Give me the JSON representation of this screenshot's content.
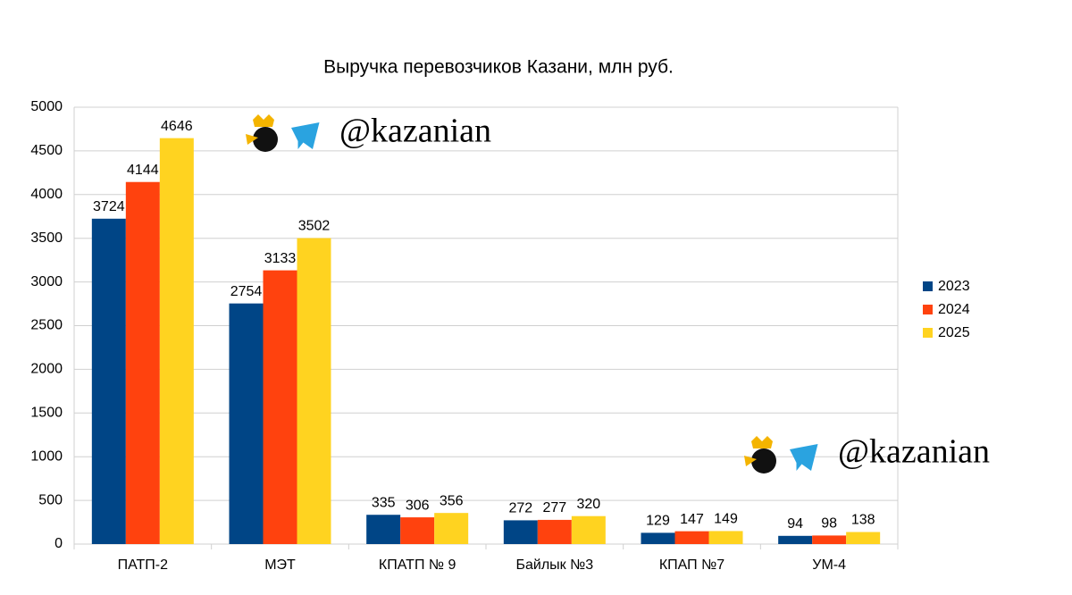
{
  "chart_data": {
    "type": "bar",
    "title": "Выручка перевозчиков Казани, млн руб.",
    "categories": [
      "ПАТП-2",
      "МЭТ",
      "КПАТП № 9",
      "Байлык №3",
      "КПАП №7",
      "УМ-4"
    ],
    "series": [
      {
        "name": "2023",
        "color": "#004586",
        "values": [
          3724,
          2754,
          335,
          272,
          129,
          94
        ]
      },
      {
        "name": "2024",
        "color": "#ff420e",
        "values": [
          4144,
          3133,
          306,
          277,
          147,
          98
        ]
      },
      {
        "name": "2025",
        "color": "#ffd320",
        "values": [
          4646,
          3502,
          356,
          320,
          149,
          138
        ]
      }
    ],
    "ylim": [
      0,
      5000
    ],
    "yticks": [
      0,
      500,
      1000,
      1500,
      2000,
      2500,
      3000,
      3500,
      4000,
      4500,
      5000
    ],
    "grid": true,
    "legend": "right",
    "watermark": "@kazanian"
  }
}
